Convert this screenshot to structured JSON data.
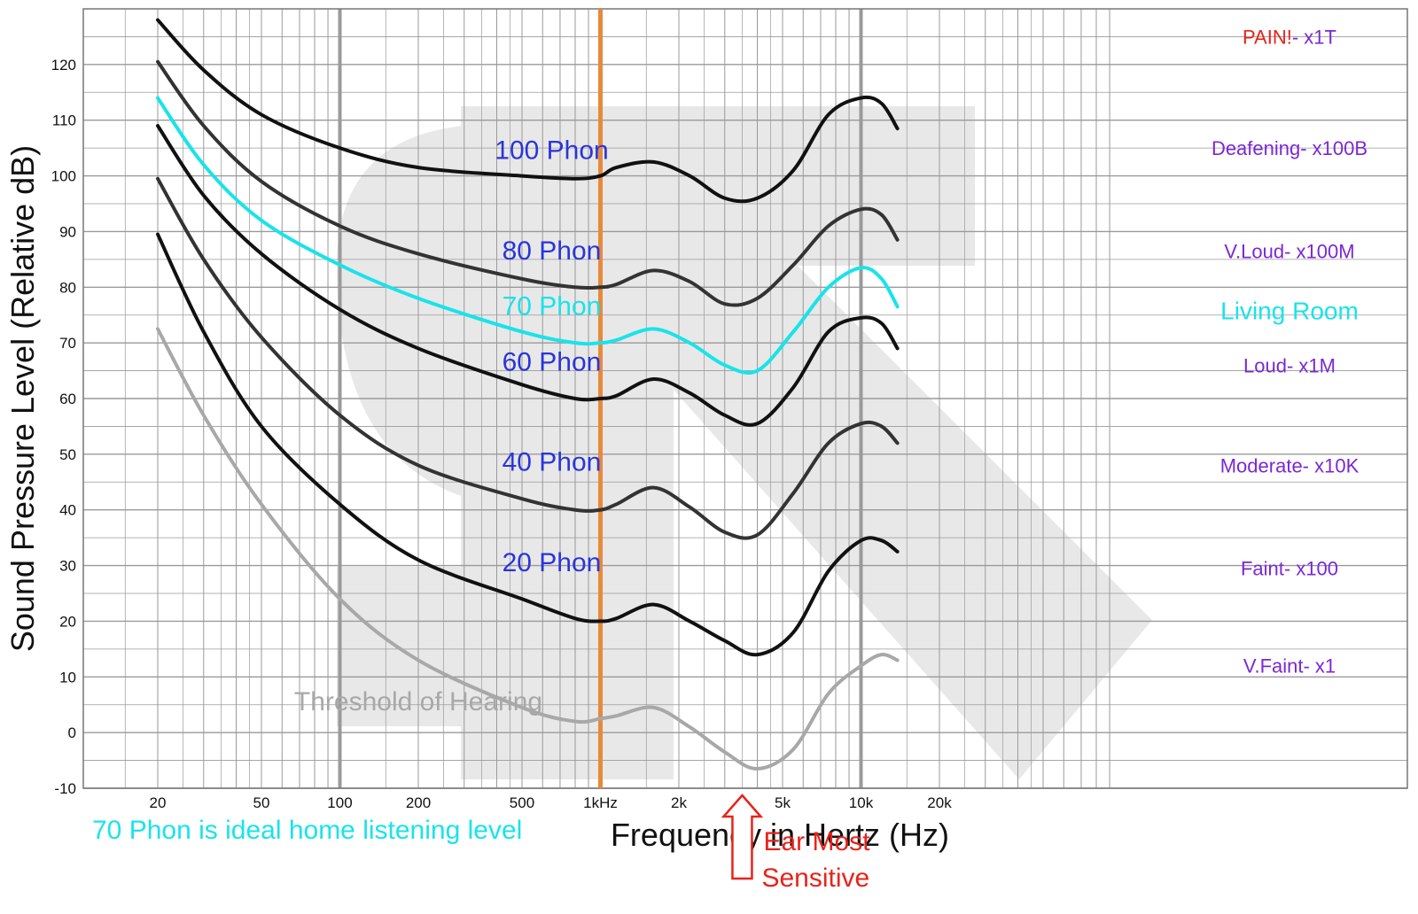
{
  "chart_data": {
    "type": "line",
    "title": "",
    "xlabel": "Frequency in Hertz (Hz)",
    "ylabel": "Sound Pressure Level (Relative dB)",
    "xscale": "log",
    "xlim": [
      16,
      30000
    ],
    "ylim": [
      -10,
      130
    ],
    "grid": true,
    "x_ticks": [
      {
        "value": 20,
        "label": "20"
      },
      {
        "value": 50,
        "label": "50"
      },
      {
        "value": 100,
        "label": "100"
      },
      {
        "value": 200,
        "label": "200"
      },
      {
        "value": 500,
        "label": "500"
      },
      {
        "value": 1000,
        "label": "1kHz"
      },
      {
        "value": 2000,
        "label": "2k"
      },
      {
        "value": 5000,
        "label": "5k"
      },
      {
        "value": 10000,
        "label": "10k"
      },
      {
        "value": 20000,
        "label": "20k"
      }
    ],
    "y_ticks": [
      {
        "value": -10,
        "label": "-10"
      },
      {
        "value": 0,
        "label": "0"
      },
      {
        "value": 10,
        "label": "10"
      },
      {
        "value": 20,
        "label": "20"
      },
      {
        "value": 30,
        "label": "30"
      },
      {
        "value": 40,
        "label": "40"
      },
      {
        "value": 50,
        "label": "50"
      },
      {
        "value": 60,
        "label": "60"
      },
      {
        "value": 70,
        "label": "70"
      },
      {
        "value": 80,
        "label": "80"
      },
      {
        "value": 90,
        "label": "90"
      },
      {
        "value": 100,
        "label": "100"
      },
      {
        "value": 110,
        "label": "110"
      },
      {
        "value": 120,
        "label": "120"
      }
    ],
    "reference_line": {
      "x": 1000,
      "color": "#e8893a"
    },
    "series": [
      {
        "name": "100 Phon",
        "label_x": 650,
        "label_y": 103,
        "color": "#111111",
        "points": [
          [
            20,
            128
          ],
          [
            30,
            119
          ],
          [
            50,
            111
          ],
          [
            100,
            105
          ],
          [
            200,
            101.5
          ],
          [
            500,
            100
          ],
          [
            800,
            99.5
          ],
          [
            1000,
            100
          ],
          [
            1150,
            101.5
          ],
          [
            1600,
            102.5
          ],
          [
            2200,
            100
          ],
          [
            3000,
            96
          ],
          [
            4000,
            96
          ],
          [
            5500,
            101
          ],
          [
            7500,
            111
          ],
          [
            10000,
            114
          ],
          [
            12000,
            113
          ],
          [
            13800,
            108.5
          ]
        ]
      },
      {
        "name": "80 Phon",
        "label_x": 650,
        "label_y": 85,
        "color": "#333333",
        "points": [
          [
            20,
            120.5
          ],
          [
            30,
            109
          ],
          [
            50,
            99
          ],
          [
            100,
            91
          ],
          [
            200,
            86
          ],
          [
            500,
            81.5
          ],
          [
            800,
            80
          ],
          [
            1000,
            80
          ],
          [
            1150,
            80.5
          ],
          [
            1600,
            83
          ],
          [
            2200,
            81
          ],
          [
            3000,
            77
          ],
          [
            4000,
            78
          ],
          [
            5500,
            84
          ],
          [
            7500,
            91
          ],
          [
            10000,
            94
          ],
          [
            12000,
            93
          ],
          [
            13800,
            88.5
          ]
        ]
      },
      {
        "name": "70 Phon",
        "label_x": 650,
        "label_y": 75,
        "color": "#19e3ea",
        "points": [
          [
            20,
            114
          ],
          [
            30,
            102
          ],
          [
            50,
            92
          ],
          [
            100,
            84
          ],
          [
            200,
            78
          ],
          [
            500,
            72
          ],
          [
            800,
            70
          ],
          [
            1000,
            70
          ],
          [
            1150,
            70.5
          ],
          [
            1600,
            72.5
          ],
          [
            2200,
            70
          ],
          [
            3000,
            66
          ],
          [
            4000,
            65
          ],
          [
            5500,
            72
          ],
          [
            7500,
            80
          ],
          [
            10000,
            83.5
          ],
          [
            12000,
            81.5
          ],
          [
            13800,
            76.5
          ]
        ]
      },
      {
        "name": "60 Phon",
        "label_x": 650,
        "label_y": 65,
        "color": "#111111",
        "points": [
          [
            20,
            109
          ],
          [
            30,
            96.5
          ],
          [
            50,
            86
          ],
          [
            100,
            76
          ],
          [
            200,
            69
          ],
          [
            500,
            62.5
          ],
          [
            800,
            60
          ],
          [
            1000,
            60
          ],
          [
            1150,
            60.5
          ],
          [
            1600,
            63.5
          ],
          [
            2200,
            61
          ],
          [
            3000,
            57
          ],
          [
            4000,
            55.5
          ],
          [
            5500,
            62
          ],
          [
            7500,
            72
          ],
          [
            10000,
            74.5
          ],
          [
            12000,
            73.5
          ],
          [
            13800,
            69
          ]
        ]
      },
      {
        "name": "40 Phon",
        "label_x": 650,
        "label_y": 47,
        "color": "#333333",
        "points": [
          [
            20,
            99.5
          ],
          [
            30,
            85
          ],
          [
            50,
            71
          ],
          [
            100,
            57
          ],
          [
            200,
            48
          ],
          [
            500,
            42
          ],
          [
            800,
            40
          ],
          [
            1000,
            40
          ],
          [
            1150,
            41
          ],
          [
            1600,
            44
          ],
          [
            2200,
            40.5
          ],
          [
            3000,
            36
          ],
          [
            4000,
            35.5
          ],
          [
            5500,
            43
          ],
          [
            7500,
            52
          ],
          [
            10000,
            55.5
          ],
          [
            12000,
            55
          ],
          [
            13800,
            52
          ]
        ]
      },
      {
        "name": "20 Phon",
        "label_x": 650,
        "label_y": 29,
        "color": "#111111",
        "points": [
          [
            20,
            89.5
          ],
          [
            30,
            72
          ],
          [
            50,
            55
          ],
          [
            100,
            41
          ],
          [
            200,
            31
          ],
          [
            500,
            24
          ],
          [
            800,
            20.5
          ],
          [
            1000,
            20
          ],
          [
            1150,
            20.5
          ],
          [
            1600,
            23
          ],
          [
            2200,
            20
          ],
          [
            3000,
            16.5
          ],
          [
            4000,
            14
          ],
          [
            5500,
            18
          ],
          [
            7500,
            29
          ],
          [
            10000,
            34.5
          ],
          [
            12000,
            34.5
          ],
          [
            13800,
            32.5
          ]
        ]
      },
      {
        "name": "Threshold of Hearing",
        "label_x": 200,
        "label_y": 4,
        "color": "#a8a8a8",
        "points": [
          [
            20,
            72.5
          ],
          [
            30,
            57
          ],
          [
            50,
            41
          ],
          [
            100,
            24
          ],
          [
            200,
            13
          ],
          [
            500,
            4.5
          ],
          [
            800,
            2
          ],
          [
            1000,
            2.5
          ],
          [
            1150,
            3
          ],
          [
            1600,
            4.5
          ],
          [
            2200,
            1
          ],
          [
            3000,
            -3.5
          ],
          [
            4000,
            -6.5
          ],
          [
            5500,
            -3
          ],
          [
            7500,
            7
          ],
          [
            10000,
            12
          ],
          [
            12000,
            14
          ],
          [
            13800,
            13
          ]
        ]
      }
    ],
    "level_labels": [
      {
        "text": "PAIN!- x1T",
        "value": 125,
        "color_first": "#e8231a",
        "color_rest": "#7b28d4",
        "split": 5
      },
      {
        "text": "Deafening- x100B",
        "value": 105
      },
      {
        "text": "V.Loud- x100M",
        "value": 86.5
      },
      {
        "text": "Living Room",
        "value": 75.5,
        "color": "#19e3ea"
      },
      {
        "text": "Loud- x1M",
        "value": 66
      },
      {
        "text": "Moderate- x10K",
        "value": 48
      },
      {
        "text": "Faint- x100",
        "value": 29.5
      },
      {
        "text": "V.Faint- x1",
        "value": 12
      }
    ],
    "annotations": {
      "home_level": "70 Phon is ideal home listening level",
      "ear_sensitive_line1": "Ear Most",
      "ear_sensitive_line2": "Sensitive",
      "ear_sensitive_x": 3500
    },
    "colors": {
      "phon_label": "#2a35d8",
      "level_label": "#7b28d4",
      "cyan": "#19e3ea",
      "red": "#e8231a",
      "grid": "#9a9a9a",
      "watermark": "#e6e6e6"
    }
  }
}
